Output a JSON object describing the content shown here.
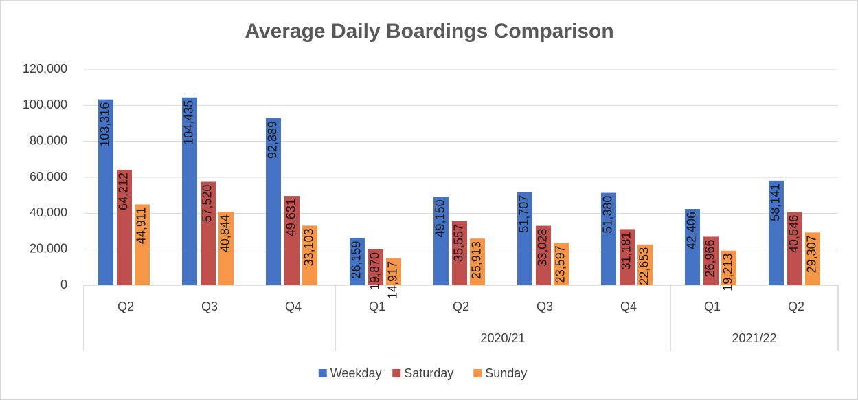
{
  "chart_data": {
    "type": "bar",
    "title": "Average Daily Boardings Comparison",
    "categories": [
      "Q2",
      "Q3",
      "Q4",
      "Q1",
      "Q2",
      "Q3",
      "Q4",
      "Q1",
      "Q2"
    ],
    "category_groups": [
      null,
      null,
      null,
      "2020/21",
      "2020/21",
      "2020/21",
      "2020/21",
      "2021/22",
      "2021/22"
    ],
    "series": [
      {
        "name": "Weekday",
        "color": "#4472c4",
        "values": [
          103316,
          104435,
          92889,
          26159,
          49150,
          51707,
          51380,
          42406,
          58141
        ],
        "value_labels": [
          "103,316",
          "104,435",
          "92,889",
          "26,159",
          "49,150",
          "51,707",
          "51,380",
          "42,406",
          "58,141"
        ]
      },
      {
        "name": "Saturday",
        "color": "#c0504d",
        "values": [
          64212,
          57520,
          49631,
          19870,
          35557,
          33028,
          31181,
          26966,
          40546
        ],
        "value_labels": [
          "64,212",
          "57,520",
          "49,631",
          "19,870",
          "35,557",
          "33,028",
          "31,181",
          "26,966",
          "40,546"
        ]
      },
      {
        "name": "Sunday",
        "color": "#f79646",
        "values": [
          44911,
          40844,
          33103,
          14917,
          25913,
          23597,
          22653,
          19213,
          29307
        ],
        "value_labels": [
          "44,911",
          "40,844",
          "33,103",
          "14,917",
          "25,913",
          "23,597",
          "22,653",
          "19,213",
          "29,307"
        ]
      }
    ],
    "ylim": [
      0,
      120000
    ],
    "yticks": [
      0,
      {
        "value": 20000,
        "label": "20,000"
      },
      {
        "value": 40000,
        "label": "40,000"
      },
      {
        "value": 60000,
        "label": "60,000"
      },
      {
        "value": 80000,
        "label": "80,000"
      },
      {
        "value": 100000,
        "label": "100,000"
      },
      {
        "value": 120000,
        "label": "120,000"
      }
    ],
    "grid": true,
    "legend": "bottom"
  }
}
